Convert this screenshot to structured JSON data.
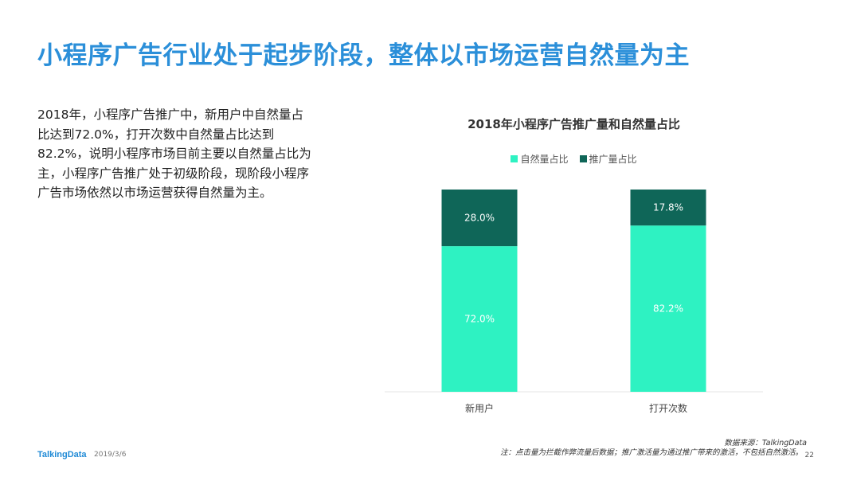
{
  "slide": {
    "title": "小程序广告行业处于起步阶段，整体以市场运营自然量为主",
    "body": "2018年，小程序广告推广中，新用户中自然量占比达到72.0%，打开次数中自然量占比达到82.2%，说明小程序市场目前主要以自然量占比为主，小程序广告推广处于初级阶段，现阶段小程序广告市场依然以市场运营获得自然量为主。"
  },
  "footer": {
    "logo": "TalkingData",
    "date": "2019/3/6",
    "source": "数据来源：TalkingData",
    "note": "注：点击量为拦截作弊流量后数据；推广激活量为通过推广带来的激活，不包括自然激活。",
    "page": "22"
  },
  "colors": {
    "title": "#2b8fd9",
    "natural": "#2ef2c2",
    "promoted": "#0f6658"
  },
  "chart_data": {
    "type": "bar",
    "stacked": true,
    "title": "2018年小程序广告推广量和自然量占比",
    "categories": [
      "新用户",
      "打开次数"
    ],
    "series": [
      {
        "name": "自然量占比",
        "values": [
          72.0,
          82.2
        ],
        "labels": [
          "72.0%",
          "82.2%"
        ],
        "color": "#2ef2c2"
      },
      {
        "name": "推广量占比",
        "values": [
          28.0,
          17.8
        ],
        "labels": [
          "28.0%",
          "17.8%"
        ],
        "color": "#0f6658"
      }
    ],
    "ylim": [
      0,
      100
    ],
    "legend": "top-center",
    "grid": false
  }
}
